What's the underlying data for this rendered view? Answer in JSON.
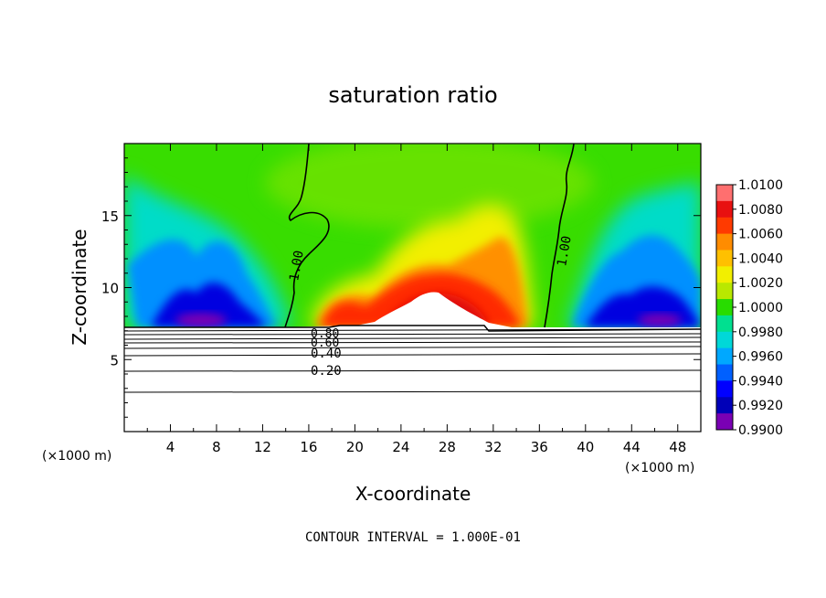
{
  "chart_data": {
    "type": "heatmap",
    "title": "saturation ratio",
    "xlabel": "X-coordinate",
    "ylabel": "Z-coordinate",
    "x_unit": "(×1000 m)",
    "xlim": [
      0,
      50
    ],
    "ylim": [
      0,
      20
    ],
    "x_ticks": [
      4,
      8,
      12,
      16,
      20,
      24,
      28,
      32,
      36,
      40,
      44,
      48
    ],
    "y_ticks": [
      5,
      10,
      15
    ],
    "footer": "CONTOUR INTERVAL = 1.000E-01",
    "colorbar": {
      "labels": [
        "1.0100",
        "1.0080",
        "1.0060",
        "1.0040",
        "1.0020",
        "1.0000",
        "0.9980",
        "0.9960",
        "0.9940",
        "0.9920",
        "0.9900"
      ],
      "colors": [
        "#ff6f6f",
        "#e81010",
        "#ff3a00",
        "#ff8c00",
        "#ffc000",
        "#f2ef00",
        "#b9e800",
        "#28dc00",
        "#00e090",
        "#00d8d8",
        "#00a8ff",
        "#0060ff",
        "#0000ff",
        "#0000b8",
        "#7a00b4"
      ]
    },
    "contour_labels": [
      "1.00",
      "1.00",
      "0.80",
      "0.60",
      "0.40",
      "0.20"
    ],
    "surface_height_km": 7.2
  }
}
